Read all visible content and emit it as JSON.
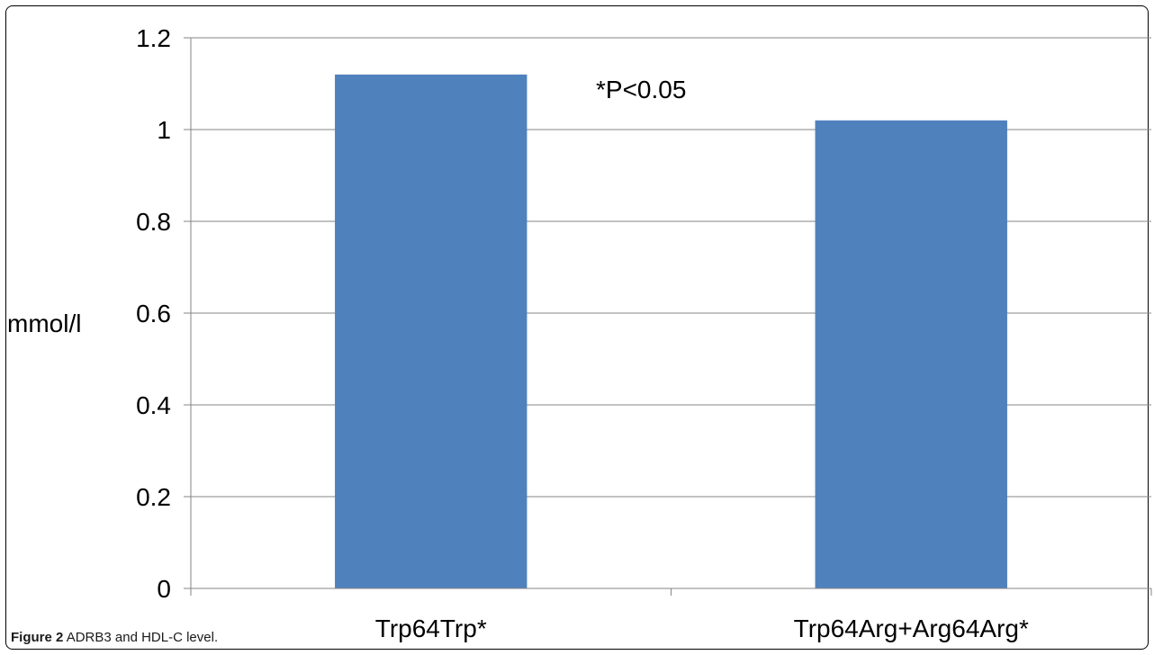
{
  "chart_data": {
    "type": "bar",
    "categories": [
      "Trp64Trp*",
      "Trp64Arg+Arg64Arg*"
    ],
    "values": [
      1.12,
      1.02
    ],
    "ylabel": "mmol/l",
    "xlabel": "",
    "ylim": [
      0,
      1.2
    ],
    "yticks": [
      "0",
      "0.2",
      "0.4",
      "0.6",
      "0.8",
      "1",
      "1.2"
    ],
    "annotation": "*P<0.05",
    "grid": true,
    "legend": "none",
    "bar_color": "#4f81bd"
  },
  "caption": {
    "label": "Figure 2",
    "text": "ADRB3 and HDL-C level",
    "end": "."
  }
}
